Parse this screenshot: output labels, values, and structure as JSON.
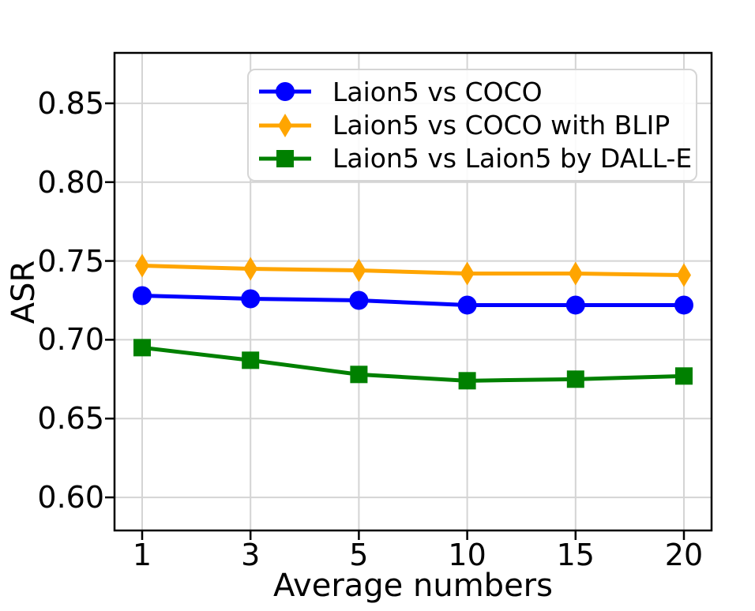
{
  "chart_data": {
    "type": "line",
    "title": "",
    "xlabel": "Average numbers",
    "ylabel": "ASR",
    "x_tick_labels": [
      "1",
      "3",
      "5",
      "10",
      "15",
      "20"
    ],
    "y_tick_labels": [
      "0.60",
      "0.65",
      "0.70",
      "0.75",
      "0.80",
      "0.85"
    ],
    "y_tick_values": [
      0.6,
      0.65,
      0.7,
      0.75,
      0.8,
      0.85
    ],
    "ylim": [
      0.579,
      0.882
    ],
    "grid": true,
    "grid_color": "#d4d4d4",
    "axis_color": "#000000",
    "legend_position": "upper center, inside axes",
    "series": [
      {
        "name": "Laion5 vs COCO",
        "color": "#0000ff",
        "marker": "circle",
        "values": [
          0.728,
          0.726,
          0.725,
          0.722,
          0.722,
          0.722
        ]
      },
      {
        "name": "Laion5 vs COCO with BLIP",
        "color": "#ffa500",
        "marker": "diamond",
        "values": [
          0.747,
          0.745,
          0.744,
          0.742,
          0.742,
          0.741
        ]
      },
      {
        "name": "Laion5 vs Laion5 by DALL-E",
        "color": "#008000",
        "marker": "square",
        "values": [
          0.695,
          0.687,
          0.678,
          0.674,
          0.675,
          0.677
        ]
      }
    ]
  }
}
